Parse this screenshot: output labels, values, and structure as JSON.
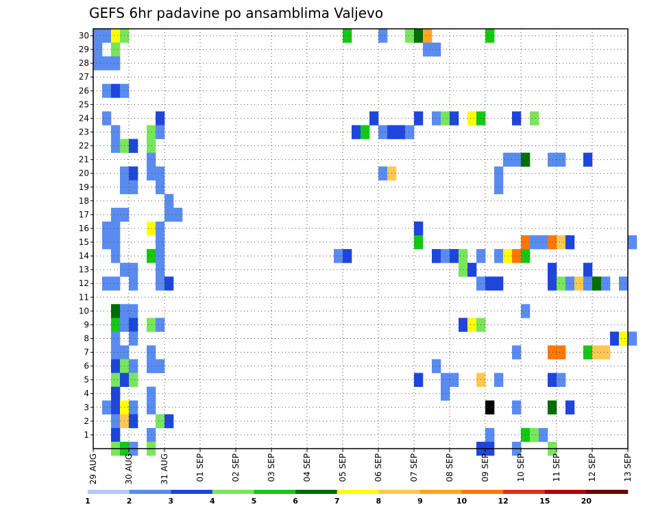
{
  "chart_data": {
    "type": "heatmap",
    "title": "GEFS 6hr padavine po ansamblima Valjevo",
    "xlabel": "",
    "ylabel": "",
    "x_ticks": [
      "29 AUG",
      "30 AUG",
      "31 AUG",
      "01 SEP",
      "02 SEP",
      "03 SEP",
      "04 SEP",
      "05 SEP",
      "06 SEP",
      "07 SEP",
      "08 SEP",
      "09 SEP",
      "10 SEP",
      "11 SEP",
      "12 SEP",
      "13 SEP"
    ],
    "y_ticks": [
      1,
      2,
      3,
      4,
      5,
      6,
      7,
      8,
      9,
      10,
      11,
      12,
      13,
      14,
      15,
      16,
      17,
      18,
      19,
      20,
      21,
      22,
      23,
      24,
      25,
      26,
      27,
      28,
      29,
      30
    ],
    "time_step_hours": 6,
    "grid": "dotted",
    "legend_position": "bottom",
    "colorbar": {
      "labels": [
        "1",
        "2",
        "3",
        "4",
        "5",
        "6",
        "7",
        "8",
        "9",
        "10",
        "12",
        "15",
        "20"
      ],
      "colors": [
        "#b4c8fa",
        "#5a8cf0",
        "#1e46dc",
        "#78e65a",
        "#14c814",
        "#006e00",
        "#ffff00",
        "#ffc850",
        "#ffa51e",
        "#ff7800",
        "#e62d14",
        "#b40000",
        "#6e0000"
      ]
    },
    "cells": [
      [
        30,
        1,
        1
      ],
      [
        30,
        2,
        6
      ],
      [
        30,
        3,
        3
      ],
      [
        29,
        2,
        3
      ],
      [
        28,
        1,
        1
      ],
      [
        28,
        2,
        1
      ],
      [
        26,
        1,
        1
      ],
      [
        26,
        2,
        2
      ],
      [
        26,
        3,
        1
      ],
      [
        24,
        1,
        1
      ],
      [
        23,
        2,
        1
      ],
      [
        22,
        2,
        1
      ],
      [
        22,
        3,
        3
      ],
      [
        22,
        4,
        2
      ],
      [
        20,
        3,
        1
      ],
      [
        20,
        4,
        2
      ],
      [
        19,
        3,
        1
      ],
      [
        19,
        4,
        1
      ],
      [
        17,
        2,
        1
      ],
      [
        17,
        3,
        1
      ],
      [
        16,
        1,
        1
      ],
      [
        16,
        2,
        1
      ],
      [
        15,
        1,
        1
      ],
      [
        15,
        2,
        1
      ],
      [
        14,
        2,
        1
      ],
      [
        13,
        3,
        1
      ],
      [
        13,
        4,
        1
      ],
      [
        12,
        1,
        1
      ],
      [
        12,
        2,
        1
      ],
      [
        12,
        4,
        1
      ],
      [
        10,
        2,
        5
      ],
      [
        10,
        3,
        1
      ],
      [
        10,
        4,
        1
      ],
      [
        9,
        2,
        4
      ],
      [
        9,
        3,
        1
      ],
      [
        9,
        4,
        2
      ],
      [
        8,
        2,
        1
      ],
      [
        8,
        4,
        1
      ],
      [
        7,
        2,
        1
      ],
      [
        7,
        3,
        1
      ],
      [
        6,
        2,
        2
      ],
      [
        6,
        3,
        3
      ],
      [
        6,
        4,
        1
      ],
      [
        5,
        2,
        3
      ],
      [
        5,
        3,
        2
      ],
      [
        5,
        4,
        3
      ],
      [
        4,
        2,
        2
      ],
      [
        3,
        1,
        1
      ],
      [
        3,
        2,
        2
      ],
      [
        3,
        3,
        6
      ],
      [
        3,
        4,
        1
      ],
      [
        2,
        2,
        1
      ],
      [
        2,
        3,
        7
      ],
      [
        2,
        4,
        2
      ],
      [
        1,
        2,
        2
      ],
      [
        0,
        2,
        3
      ],
      [
        0,
        3,
        4
      ],
      [
        0,
        4,
        1
      ],
      [
        30,
        0,
        1
      ],
      [
        29,
        0,
        1
      ],
      [
        28,
        0,
        1
      ],
      [
        24,
        7,
        2
      ],
      [
        23,
        6,
        3
      ],
      [
        23,
        7,
        1
      ],
      [
        22,
        6,
        3
      ],
      [
        21,
        6,
        1
      ],
      [
        20,
        6,
        1
      ],
      [
        20,
        7,
        1
      ],
      [
        19,
        7,
        1
      ],
      [
        18,
        8,
        1
      ],
      [
        17,
        8,
        1
      ],
      [
        17,
        9,
        1
      ],
      [
        16,
        6,
        6
      ],
      [
        16,
        7,
        1
      ],
      [
        15,
        7,
        1
      ],
      [
        14,
        6,
        4
      ],
      [
        14,
        7,
        1
      ],
      [
        13,
        7,
        1
      ],
      [
        12,
        7,
        1
      ],
      [
        12,
        8,
        2
      ],
      [
        9,
        6,
        3
      ],
      [
        9,
        7,
        1
      ],
      [
        7,
        6,
        1
      ],
      [
        6,
        6,
        1
      ],
      [
        6,
        7,
        1
      ],
      [
        4,
        6,
        1
      ],
      [
        3,
        6,
        1
      ],
      [
        2,
        7,
        3
      ],
      [
        2,
        8,
        2
      ],
      [
        1,
        6,
        1
      ],
      [
        0,
        6,
        3
      ],
      [
        30,
        28,
        4
      ],
      [
        30,
        32,
        1
      ],
      [
        30,
        35,
        3
      ],
      [
        30,
        36,
        5
      ],
      [
        30,
        37,
        8
      ],
      [
        30,
        44,
        4
      ],
      [
        29,
        37,
        1
      ],
      [
        29,
        38,
        1
      ],
      [
        24,
        31,
        2
      ],
      [
        24,
        36,
        2
      ],
      [
        24,
        38,
        1
      ],
      [
        24,
        39,
        3
      ],
      [
        24,
        40,
        2
      ],
      [
        24,
        42,
        6
      ],
      [
        24,
        43,
        4
      ],
      [
        24,
        47,
        2
      ],
      [
        24,
        49,
        3
      ],
      [
        23,
        29,
        2
      ],
      [
        23,
        30,
        4
      ],
      [
        23,
        32,
        1
      ],
      [
        23,
        33,
        2
      ],
      [
        23,
        34,
        2
      ],
      [
        23,
        35,
        1
      ],
      [
        21,
        46,
        1
      ],
      [
        21,
        47,
        1
      ],
      [
        21,
        48,
        5
      ],
      [
        21,
        51,
        1
      ],
      [
        21,
        52,
        1
      ],
      [
        21,
        55,
        2
      ],
      [
        20,
        32,
        1
      ],
      [
        20,
        33,
        7
      ],
      [
        20,
        45,
        1
      ],
      [
        19,
        45,
        1
      ],
      [
        16,
        36,
        2
      ],
      [
        15,
        36,
        4
      ],
      [
        15,
        48,
        9
      ],
      [
        15,
        49,
        1
      ],
      [
        15,
        50,
        1
      ],
      [
        15,
        51,
        9
      ],
      [
        15,
        52,
        7
      ],
      [
        15,
        53,
        2
      ],
      [
        15,
        60,
        1
      ],
      [
        14,
        27,
        1
      ],
      [
        14,
        28,
        2
      ],
      [
        14,
        38,
        2
      ],
      [
        14,
        39,
        1
      ],
      [
        14,
        40,
        2
      ],
      [
        14,
        41,
        3
      ],
      [
        14,
        43,
        1
      ],
      [
        14,
        45,
        1
      ],
      [
        14,
        46,
        6
      ],
      [
        14,
        47,
        9
      ],
      [
        14,
        48,
        4
      ],
      [
        13,
        41,
        3
      ],
      [
        13,
        42,
        2
      ],
      [
        13,
        51,
        2
      ],
      [
        13,
        55,
        2
      ],
      [
        12,
        43,
        1
      ],
      [
        12,
        44,
        2
      ],
      [
        12,
        45,
        2
      ],
      [
        12,
        51,
        2
      ],
      [
        12,
        52,
        3
      ],
      [
        12,
        53,
        1
      ],
      [
        12,
        54,
        7
      ],
      [
        12,
        55,
        1
      ],
      [
        12,
        56,
        5
      ],
      [
        12,
        57,
        1
      ],
      [
        12,
        59,
        1
      ],
      [
        10,
        48,
        1
      ],
      [
        9,
        41,
        2
      ],
      [
        9,
        42,
        6
      ],
      [
        9,
        43,
        3
      ],
      [
        8,
        58,
        2
      ],
      [
        8,
        59,
        6
      ],
      [
        8,
        60,
        1
      ],
      [
        7,
        47,
        1
      ],
      [
        7,
        51,
        9
      ],
      [
        7,
        52,
        9
      ],
      [
        7,
        55,
        4
      ],
      [
        7,
        56,
        7
      ],
      [
        7,
        57,
        7
      ],
      [
        6,
        38,
        1
      ],
      [
        5,
        36,
        2
      ],
      [
        5,
        39,
        1
      ],
      [
        5,
        40,
        1
      ],
      [
        5,
        43,
        7
      ],
      [
        5,
        45,
        1
      ],
      [
        5,
        51,
        2
      ],
      [
        5,
        52,
        1
      ],
      [
        4,
        39,
        1
      ],
      [
        3,
        44,
        13
      ],
      [
        3,
        47,
        1
      ],
      [
        3,
        51,
        5
      ],
      [
        3,
        53,
        2
      ],
      [
        1,
        44,
        1
      ],
      [
        1,
        48,
        4
      ],
      [
        1,
        49,
        3
      ],
      [
        1,
        50,
        1
      ],
      [
        0,
        43,
        2
      ],
      [
        0,
        44,
        2
      ],
      [
        0,
        47,
        1
      ],
      [
        0,
        51,
        3
      ]
    ]
  }
}
